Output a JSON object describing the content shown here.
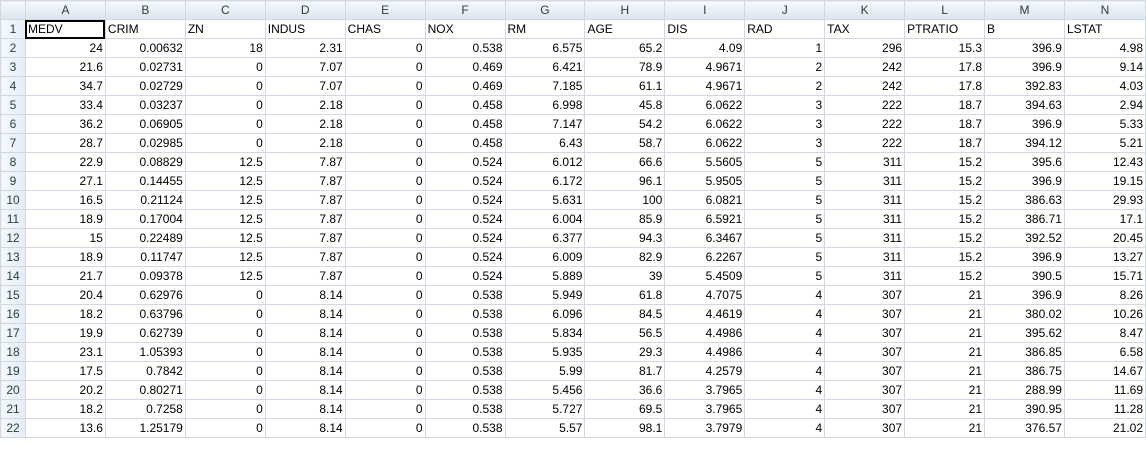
{
  "columns": [
    "A",
    "B",
    "C",
    "D",
    "E",
    "F",
    "G",
    "H",
    "I",
    "J",
    "K",
    "L",
    "M",
    "N"
  ],
  "rows": [
    {
      "n": "1",
      "cells": [
        "MEDV",
        "CRIM",
        "ZN",
        "INDUS",
        "CHAS",
        "NOX",
        "RM",
        "AGE",
        "DIS",
        "RAD",
        "TAX",
        "PTRATIO",
        "B",
        "LSTAT"
      ],
      "header": true
    },
    {
      "n": "2",
      "cells": [
        "24",
        "0.00632",
        "18",
        "2.31",
        "0",
        "0.538",
        "6.575",
        "65.2",
        "4.09",
        "1",
        "296",
        "15.3",
        "396.9",
        "4.98"
      ]
    },
    {
      "n": "3",
      "cells": [
        "21.6",
        "0.02731",
        "0",
        "7.07",
        "0",
        "0.469",
        "6.421",
        "78.9",
        "4.9671",
        "2",
        "242",
        "17.8",
        "396.9",
        "9.14"
      ]
    },
    {
      "n": "4",
      "cells": [
        "34.7",
        "0.02729",
        "0",
        "7.07",
        "0",
        "0.469",
        "7.185",
        "61.1",
        "4.9671",
        "2",
        "242",
        "17.8",
        "392.83",
        "4.03"
      ]
    },
    {
      "n": "5",
      "cells": [
        "33.4",
        "0.03237",
        "0",
        "2.18",
        "0",
        "0.458",
        "6.998",
        "45.8",
        "6.0622",
        "3",
        "222",
        "18.7",
        "394.63",
        "2.94"
      ]
    },
    {
      "n": "6",
      "cells": [
        "36.2",
        "0.06905",
        "0",
        "2.18",
        "0",
        "0.458",
        "7.147",
        "54.2",
        "6.0622",
        "3",
        "222",
        "18.7",
        "396.9",
        "5.33"
      ]
    },
    {
      "n": "7",
      "cells": [
        "28.7",
        "0.02985",
        "0",
        "2.18",
        "0",
        "0.458",
        "6.43",
        "58.7",
        "6.0622",
        "3",
        "222",
        "18.7",
        "394.12",
        "5.21"
      ]
    },
    {
      "n": "8",
      "cells": [
        "22.9",
        "0.08829",
        "12.5",
        "7.87",
        "0",
        "0.524",
        "6.012",
        "66.6",
        "5.5605",
        "5",
        "311",
        "15.2",
        "395.6",
        "12.43"
      ]
    },
    {
      "n": "9",
      "cells": [
        "27.1",
        "0.14455",
        "12.5",
        "7.87",
        "0",
        "0.524",
        "6.172",
        "96.1",
        "5.9505",
        "5",
        "311",
        "15.2",
        "396.9",
        "19.15"
      ]
    },
    {
      "n": "10",
      "cells": [
        "16.5",
        "0.21124",
        "12.5",
        "7.87",
        "0",
        "0.524",
        "5.631",
        "100",
        "6.0821",
        "5",
        "311",
        "15.2",
        "386.63",
        "29.93"
      ]
    },
    {
      "n": "11",
      "cells": [
        "18.9",
        "0.17004",
        "12.5",
        "7.87",
        "0",
        "0.524",
        "6.004",
        "85.9",
        "6.5921",
        "5",
        "311",
        "15.2",
        "386.71",
        "17.1"
      ]
    },
    {
      "n": "12",
      "cells": [
        "15",
        "0.22489",
        "12.5",
        "7.87",
        "0",
        "0.524",
        "6.377",
        "94.3",
        "6.3467",
        "5",
        "311",
        "15.2",
        "392.52",
        "20.45"
      ]
    },
    {
      "n": "13",
      "cells": [
        "18.9",
        "0.11747",
        "12.5",
        "7.87",
        "0",
        "0.524",
        "6.009",
        "82.9",
        "6.2267",
        "5",
        "311",
        "15.2",
        "396.9",
        "13.27"
      ]
    },
    {
      "n": "14",
      "cells": [
        "21.7",
        "0.09378",
        "12.5",
        "7.87",
        "0",
        "0.524",
        "5.889",
        "39",
        "5.4509",
        "5",
        "311",
        "15.2",
        "390.5",
        "15.71"
      ]
    },
    {
      "n": "15",
      "cells": [
        "20.4",
        "0.62976",
        "0",
        "8.14",
        "0",
        "0.538",
        "5.949",
        "61.8",
        "4.7075",
        "4",
        "307",
        "21",
        "396.9",
        "8.26"
      ]
    },
    {
      "n": "16",
      "cells": [
        "18.2",
        "0.63796",
        "0",
        "8.14",
        "0",
        "0.538",
        "6.096",
        "84.5",
        "4.4619",
        "4",
        "307",
        "21",
        "380.02",
        "10.26"
      ]
    },
    {
      "n": "17",
      "cells": [
        "19.9",
        "0.62739",
        "0",
        "8.14",
        "0",
        "0.538",
        "5.834",
        "56.5",
        "4.4986",
        "4",
        "307",
        "21",
        "395.62",
        "8.47"
      ]
    },
    {
      "n": "18",
      "cells": [
        "23.1",
        "1.05393",
        "0",
        "8.14",
        "0",
        "0.538",
        "5.935",
        "29.3",
        "4.4986",
        "4",
        "307",
        "21",
        "386.85",
        "6.58"
      ]
    },
    {
      "n": "19",
      "cells": [
        "17.5",
        "0.7842",
        "0",
        "8.14",
        "0",
        "0.538",
        "5.99",
        "81.7",
        "4.2579",
        "4",
        "307",
        "21",
        "386.75",
        "14.67"
      ]
    },
    {
      "n": "20",
      "cells": [
        "20.2",
        "0.80271",
        "0",
        "8.14",
        "0",
        "0.538",
        "5.456",
        "36.6",
        "3.7965",
        "4",
        "307",
        "21",
        "288.99",
        "11.69"
      ]
    },
    {
      "n": "21",
      "cells": [
        "18.2",
        "0.7258",
        "0",
        "8.14",
        "0",
        "0.538",
        "5.727",
        "69.5",
        "3.7965",
        "4",
        "307",
        "21",
        "390.95",
        "11.28"
      ]
    },
    {
      "n": "22",
      "cells": [
        "13.6",
        "1.25179",
        "0",
        "8.14",
        "0",
        "0.538",
        "5.57",
        "98.1",
        "3.7979",
        "4",
        "307",
        "21",
        "376.57",
        "21.02"
      ]
    }
  ]
}
